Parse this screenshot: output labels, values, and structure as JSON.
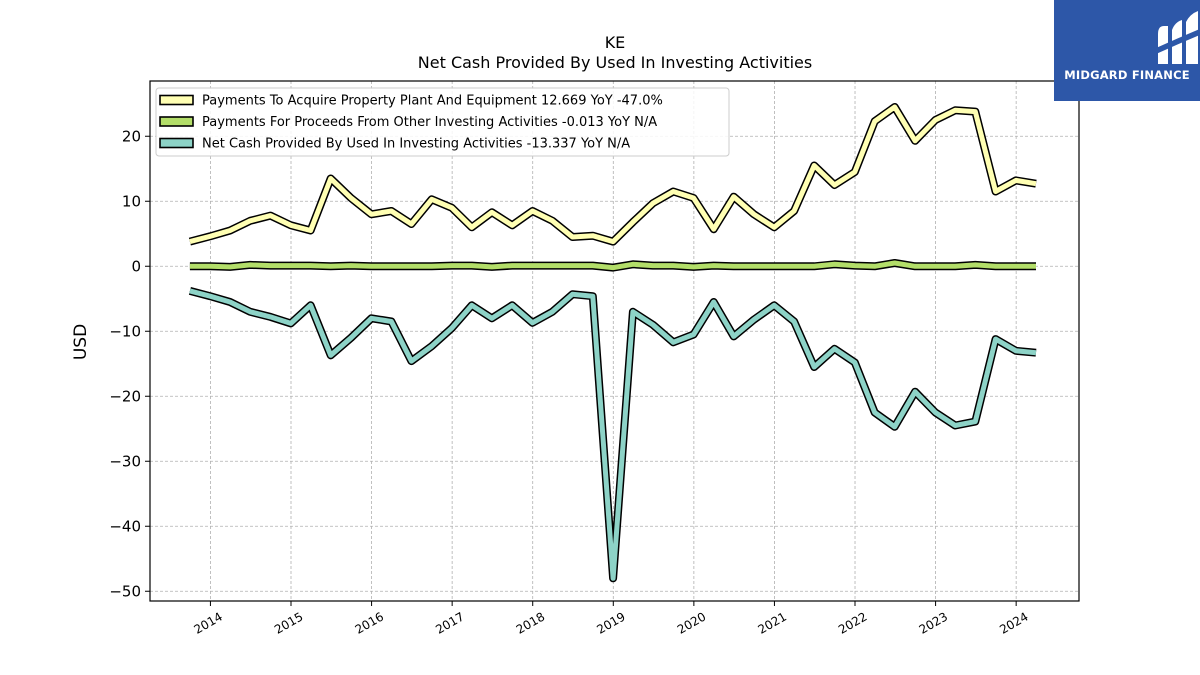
{
  "chart_data": {
    "type": "line",
    "title": "KE",
    "subtitle": "Net Cash Provided By Used In Investing Activities",
    "ylabel": "USD",
    "xlabel": "",
    "ylim": [
      -51.5,
      28.5
    ],
    "xlim": [
      2013.25,
      2024.78
    ],
    "yticks": [
      20,
      10,
      0,
      -10,
      -20,
      -30,
      -40,
      -50
    ],
    "ytick_labels": [
      "20",
      "10",
      "0",
      "−10",
      "−20",
      "−30",
      "−40",
      "−50"
    ],
    "xticks": [
      2014,
      2015,
      2016,
      2017,
      2018,
      2019,
      2020,
      2021,
      2022,
      2023,
      2024
    ],
    "xtick_labels": [
      "2014",
      "2015",
      "2016",
      "2017",
      "2018",
      "2019",
      "2020",
      "2021",
      "2022",
      "2023",
      "2024"
    ],
    "grid": true,
    "legend_position": "top-left",
    "x": [
      "2013-09-30",
      "2013-12-31",
      "2014-03-31",
      "2014-06-30",
      "2014-09-30",
      "2014-12-31",
      "2015-03-31",
      "2015-06-30",
      "2015-09-30",
      "2015-12-31",
      "2016-03-31",
      "2016-06-30",
      "2016-09-30",
      "2016-12-31",
      "2017-03-31",
      "2017-06-30",
      "2017-09-30",
      "2017-12-31",
      "2018-03-31",
      "2018-06-30",
      "2018-09-30",
      "2018-12-31",
      "2019-03-31",
      "2019-06-30",
      "2019-09-30",
      "2019-12-31",
      "2020-03-31",
      "2020-06-30",
      "2020-09-30",
      "2020-12-31",
      "2021-03-31",
      "2021-06-30",
      "2021-09-30",
      "2021-12-31",
      "2022-03-31",
      "2022-06-30",
      "2022-09-30",
      "2022-12-31",
      "2023-03-31",
      "2023-06-30",
      "2023-09-30",
      "2023-12-31",
      "2024-03-31"
    ],
    "series": [
      {
        "name": "Payments To Acquire Property Plant And Equipment  12.669 YoY -47.0%",
        "color": "#ffffb3",
        "values": [
          3.8,
          4.6,
          5.5,
          7.0,
          7.8,
          6.3,
          5.5,
          13.5,
          10.5,
          8.0,
          8.5,
          6.5,
          10.3,
          9.0,
          6.0,
          8.3,
          6.3,
          8.5,
          7.0,
          4.5,
          4.7,
          3.8,
          6.8,
          9.7,
          11.5,
          10.5,
          5.7,
          10.7,
          8.0,
          6.0,
          8.5,
          15.5,
          12.5,
          14.5,
          22.3,
          24.5,
          19.3,
          22.5,
          24.0,
          23.8,
          11.5,
          13.2,
          12.7
        ]
      },
      {
        "name": "Payments For Proceeds From Other Investing Activities  -0.013 YoY N/A",
        "color": "#b3de69",
        "values": [
          0.0,
          0.0,
          -0.1,
          0.2,
          0.1,
          0.1,
          0.1,
          0.0,
          0.1,
          0.0,
          0.0,
          0.0,
          0.0,
          0.1,
          0.1,
          -0.1,
          0.1,
          0.1,
          0.1,
          0.1,
          0.1,
          -0.2,
          0.3,
          0.1,
          0.1,
          -0.1,
          0.1,
          0.0,
          0.0,
          0.0,
          0.0,
          0.0,
          0.3,
          0.1,
          0.0,
          0.5,
          0.0,
          0.0,
          0.0,
          0.2,
          0.0,
          0.0,
          0.0
        ]
      },
      {
        "name": "Net Cash Provided By Used In Investing Activities  -13.337 YoY N/A",
        "color": "#8dd3c7",
        "values": [
          -3.8,
          -4.6,
          -5.5,
          -7.0,
          -7.8,
          -8.8,
          -6.0,
          -13.7,
          -11.0,
          -8.0,
          -8.5,
          -14.6,
          -12.3,
          -9.5,
          -6.0,
          -8.0,
          -6.0,
          -8.7,
          -7.0,
          -4.3,
          -4.6,
          -48.0,
          -7.0,
          -9.0,
          -11.7,
          -10.5,
          -5.5,
          -10.8,
          -8.2,
          -6.0,
          -8.5,
          -15.5,
          -12.7,
          -14.8,
          -22.5,
          -24.7,
          -19.3,
          -22.5,
          -24.5,
          -23.9,
          -11.2,
          -13.0,
          -13.3
        ]
      }
    ]
  },
  "logo": {
    "text": "MIDGARD FINANCE",
    "background": "#2d57a8"
  }
}
